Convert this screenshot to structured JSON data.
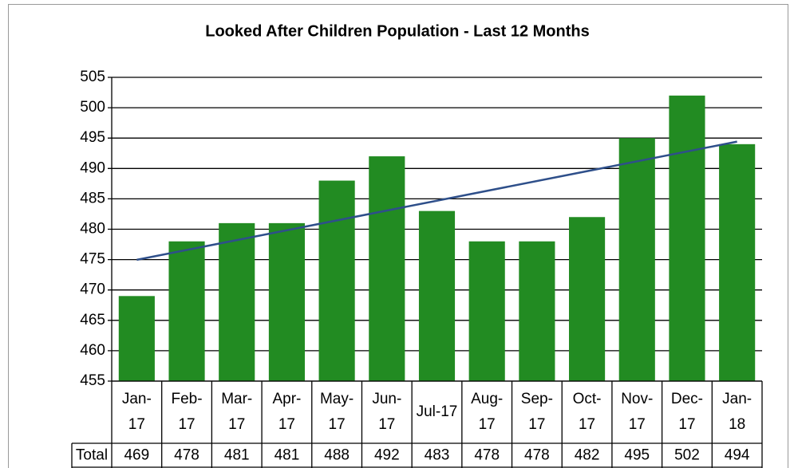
{
  "chart_data": {
    "type": "bar",
    "title": "Looked After Children Population - Last 12 Months",
    "categories": [
      "Jan-17",
      "Feb-17",
      "Mar-17",
      "Apr-17",
      "May-17",
      "Jun-17",
      "Jul-17",
      "Aug-17",
      "Sep-17",
      "Oct-17",
      "Nov-17",
      "Dec-17",
      "Jan-18"
    ],
    "series": [
      {
        "name": "Total",
        "color": "#228b22",
        "values": [
          469,
          478,
          481,
          481,
          488,
          492,
          483,
          478,
          478,
          482,
          495,
          502,
          494
        ]
      }
    ],
    "ylim": [
      455,
      505
    ],
    "yticks": [
      455,
      460,
      465,
      470,
      475,
      480,
      485,
      490,
      495,
      500,
      505
    ],
    "grid": true,
    "trendline": "linear",
    "trendline_color": "#2e4f8a",
    "data_table": true
  }
}
